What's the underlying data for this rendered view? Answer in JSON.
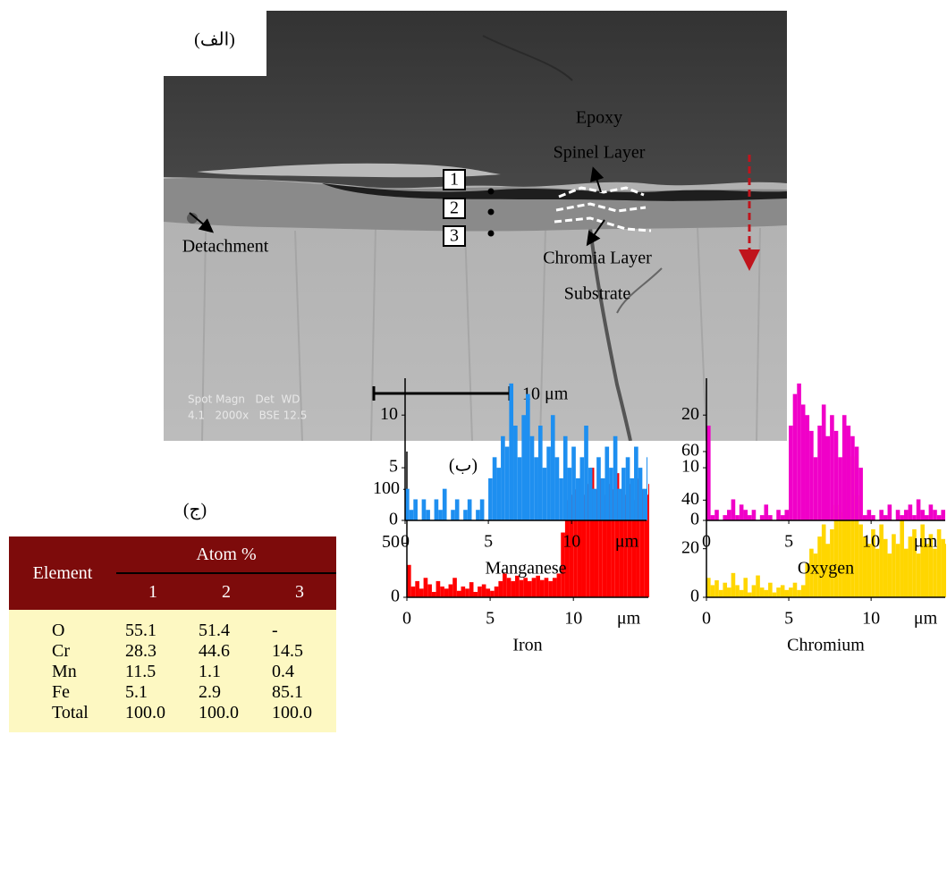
{
  "panel_a": {
    "label": "(الف)",
    "epoxy": "Epoxy",
    "spinel": "Spinel Layer",
    "chromia": "Chromia Layer",
    "substrate": "Substrate",
    "detachment": "Detachment",
    "points": [
      "1",
      "2",
      "3"
    ],
    "scale_bar": "10 μm",
    "info": [
      "Spot Magn   Det  WD",
      "4.1   2000x   BSE 12.5"
    ]
  },
  "panel_b_label": "(ب)",
  "panel_c": {
    "label": "(ج)",
    "table": {
      "header": [
        "Element",
        "Atom %"
      ],
      "columns": [
        "1",
        "2",
        "3"
      ],
      "rows": [
        [
          "O",
          "55.1",
          "51.4",
          "-"
        ],
        [
          "Cr",
          "28.3",
          "44.6",
          "14.5"
        ],
        [
          "Mn",
          "11.5",
          "1.1",
          "0.4"
        ],
        [
          "Fe",
          "5.1",
          "2.9",
          "85.1"
        ],
        [
          "Total",
          "100.0",
          "100.0",
          "100.0"
        ]
      ]
    }
  },
  "chart_data": [
    {
      "type": "bar",
      "title": "Iron",
      "x_unit": "μm",
      "color": "#ff0000",
      "xlim": [
        0,
        14.5
      ],
      "xticks": [
        0,
        5,
        10
      ],
      "ylim": [
        0,
        135
      ],
      "yticks": [
        0,
        50,
        100
      ],
      "x": [
        0,
        0.25,
        0.5,
        0.75,
        1,
        1.25,
        1.5,
        1.75,
        2,
        2.25,
        2.5,
        2.75,
        3,
        3.25,
        3.5,
        3.75,
        4,
        4.25,
        4.5,
        4.75,
        5,
        5.25,
        5.5,
        5.75,
        6,
        6.25,
        6.5,
        6.75,
        7,
        7.25,
        7.5,
        7.75,
        8,
        8.25,
        8.5,
        8.75,
        9,
        9.25,
        9.5,
        9.75,
        10,
        10.25,
        10.5,
        10.75,
        11,
        11.25,
        11.5,
        11.75,
        12,
        12.25,
        12.5,
        12.75,
        13,
        13.25,
        13.5,
        13.75,
        14,
        14.25,
        14.5
      ],
      "values": [
        30,
        10,
        15,
        8,
        18,
        12,
        5,
        15,
        10,
        8,
        12,
        18,
        6,
        10,
        8,
        14,
        5,
        10,
        12,
        8,
        6,
        10,
        15,
        22,
        18,
        15,
        20,
        16,
        18,
        15,
        18,
        20,
        16,
        18,
        15,
        18,
        22,
        60,
        90,
        95,
        100,
        110,
        95,
        105,
        120,
        100,
        110,
        95,
        105,
        100,
        115,
        100,
        95,
        105,
        90,
        110,
        100,
        95,
        105
      ]
    },
    {
      "type": "bar",
      "title": "Chromium",
      "x_unit": "μm",
      "color": "#ffd600",
      "xlim": [
        0,
        14.5
      ],
      "xticks": [
        0,
        5,
        10
      ],
      "ylim": [
        0,
        60
      ],
      "yticks": [
        0,
        20,
        40,
        60
      ],
      "x": [
        0,
        0.25,
        0.5,
        0.75,
        1,
        1.25,
        1.5,
        1.75,
        2,
        2.25,
        2.5,
        2.75,
        3,
        3.25,
        3.5,
        3.75,
        4,
        4.25,
        4.5,
        4.75,
        5,
        5.25,
        5.5,
        5.75,
        6,
        6.25,
        6.5,
        6.75,
        7,
        7.25,
        7.5,
        7.75,
        8,
        8.25,
        8.5,
        8.75,
        9,
        9.25,
        9.5,
        9.75,
        10,
        10.25,
        10.5,
        10.75,
        11,
        11.25,
        11.5,
        11.75,
        12,
        12.25,
        12.5,
        12.75,
        13,
        13.25,
        13.5,
        13.75,
        14,
        14.25,
        14.5
      ],
      "values": [
        8,
        5,
        7,
        3,
        6,
        4,
        10,
        5,
        3,
        8,
        2,
        5,
        9,
        4,
        3,
        6,
        2,
        4,
        5,
        3,
        4,
        6,
        3,
        5,
        14,
        20,
        18,
        25,
        30,
        22,
        28,
        38,
        35,
        45,
        40,
        58,
        42,
        30,
        25,
        22,
        28,
        20,
        30,
        24,
        18,
        26,
        22,
        32,
        20,
        25,
        28,
        18,
        30,
        22,
        26,
        20,
        28,
        24,
        22
      ]
    },
    {
      "type": "bar",
      "title": "Manganese",
      "x_unit": "μm",
      "color": "#1e8ff0",
      "xlim": [
        0,
        14.5
      ],
      "xticks": [
        0,
        5,
        10
      ],
      "ylim": [
        0,
        13.5
      ],
      "yticks": [
        0,
        5,
        10
      ],
      "x": [
        0,
        0.25,
        0.5,
        0.75,
        1,
        1.25,
        1.5,
        1.75,
        2,
        2.25,
        2.5,
        2.75,
        3,
        3.25,
        3.5,
        3.75,
        4,
        4.25,
        4.5,
        4.75,
        5,
        5.25,
        5.5,
        5.75,
        6,
        6.25,
        6.5,
        6.75,
        7,
        7.25,
        7.5,
        7.75,
        8,
        8.25,
        8.5,
        8.75,
        9,
        9.25,
        9.5,
        9.75,
        10,
        10.25,
        10.5,
        10.75,
        11,
        11.25,
        11.5,
        11.75,
        12,
        12.25,
        12.5,
        12.75,
        13,
        13.25,
        13.5,
        13.75,
        14,
        14.25,
        14.5
      ],
      "values": [
        3,
        1,
        2,
        0,
        2,
        1,
        0,
        2,
        1,
        3,
        0,
        1,
        2,
        0,
        1,
        2,
        0,
        1,
        2,
        0,
        4,
        6,
        5,
        8,
        7,
        13,
        9,
        6,
        10,
        12,
        8,
        6,
        9,
        5,
        7,
        10,
        6,
        4,
        8,
        5,
        7,
        4,
        6,
        9,
        5,
        3,
        6,
        4,
        7,
        5,
        8,
        3,
        5,
        6,
        4,
        7,
        5,
        3,
        6
      ]
    },
    {
      "type": "bar",
      "title": "Oxygen",
      "x_unit": "μm",
      "color": "#f000c8",
      "xlim": [
        0,
        14.5
      ],
      "xticks": [
        0,
        5,
        10
      ],
      "ylim": [
        0,
        27
      ],
      "yticks": [
        0,
        10,
        20
      ],
      "x": [
        0,
        0.25,
        0.5,
        0.75,
        1,
        1.25,
        1.5,
        1.75,
        2,
        2.25,
        2.5,
        2.75,
        3,
        3.25,
        3.5,
        3.75,
        4,
        4.25,
        4.5,
        4.75,
        5,
        5.25,
        5.5,
        5.75,
        6,
        6.25,
        6.5,
        6.75,
        7,
        7.25,
        7.5,
        7.75,
        8,
        8.25,
        8.5,
        8.75,
        9,
        9.25,
        9.5,
        9.75,
        10,
        10.25,
        10.5,
        10.75,
        11,
        11.25,
        11.5,
        11.75,
        12,
        12.25,
        12.5,
        12.75,
        13,
        13.25,
        13.5,
        13.75,
        14,
        14.25,
        14.5
      ],
      "values": [
        18,
        1,
        2,
        0,
        1,
        2,
        4,
        1,
        3,
        2,
        1,
        2,
        0,
        1,
        3,
        1,
        0,
        2,
        1,
        2,
        18,
        24,
        26,
        22,
        20,
        17,
        12,
        18,
        22,
        16,
        20,
        17,
        12,
        20,
        18,
        16,
        14,
        10,
        1,
        2,
        1,
        0,
        2,
        1,
        3,
        0,
        2,
        1,
        2,
        3,
        1,
        4,
        2,
        1,
        3,
        2,
        1,
        2,
        0
      ]
    }
  ]
}
